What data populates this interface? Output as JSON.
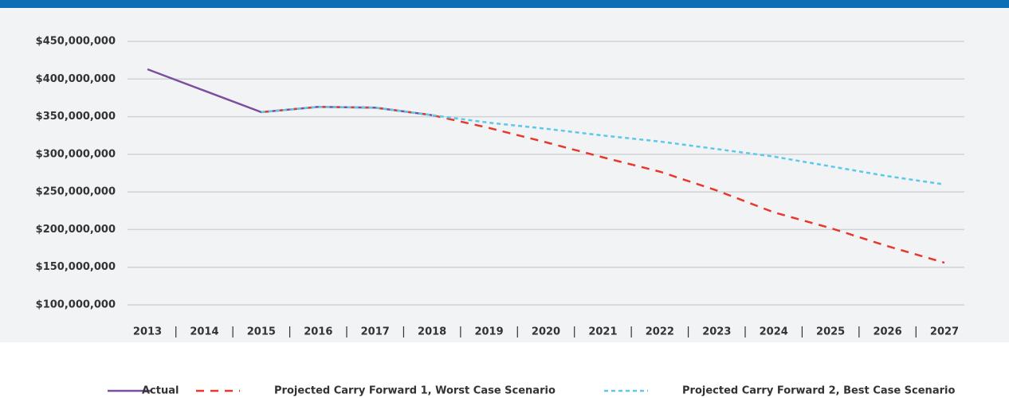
{
  "chart_data": {
    "type": "line",
    "categories": [
      "2013",
      "2014",
      "2015",
      "2016",
      "2017",
      "2018",
      "2019",
      "2020",
      "2021",
      "2022",
      "2023",
      "2024",
      "2025",
      "2026",
      "2027"
    ],
    "series": [
      {
        "name": "Actual",
        "color": "#7b4fa0",
        "dash": "none",
        "values": [
          413000000,
          384500000,
          356000000,
          363000000,
          362000000,
          352000000,
          null,
          null,
          null,
          null,
          null,
          null,
          null,
          null,
          null
        ]
      },
      {
        "name": "Projected Carry Forward 1, Worst Case Scenario",
        "color": "#e5392c",
        "dash": "10,8",
        "values": [
          null,
          null,
          356000000,
          363000000,
          362000000,
          352000000,
          335000000,
          316000000,
          296000000,
          277000000,
          252000000,
          223000000,
          202000000,
          178000000,
          156000000
        ]
      },
      {
        "name": "Projected Carry Forward 2, Best Case Scenario",
        "color": "#5cc8ea",
        "dash": "5,4",
        "values": [
          null,
          null,
          356000000,
          363000000,
          362000000,
          352000000,
          342000000,
          334000000,
          325000000,
          317000000,
          307000000,
          297000000,
          284000000,
          271000000,
          260000000
        ]
      }
    ],
    "ylim": [
      100000000,
      450000000
    ],
    "yticks": [
      {
        "value": 100000000,
        "label": "$100,000,000"
      },
      {
        "value": 150000000,
        "label": "$150,000,000"
      },
      {
        "value": 200000000,
        "label": "$200,000,000"
      },
      {
        "value": 250000000,
        "label": "$250,000,000"
      },
      {
        "value": 300000000,
        "label": "$300,000,000"
      },
      {
        "value": 350000000,
        "label": "$350,000,000"
      },
      {
        "value": 400000000,
        "label": "$400,000,000"
      },
      {
        "value": 450000000,
        "label": "$450,000,000"
      }
    ],
    "grid": true,
    "legend": "bottom"
  }
}
